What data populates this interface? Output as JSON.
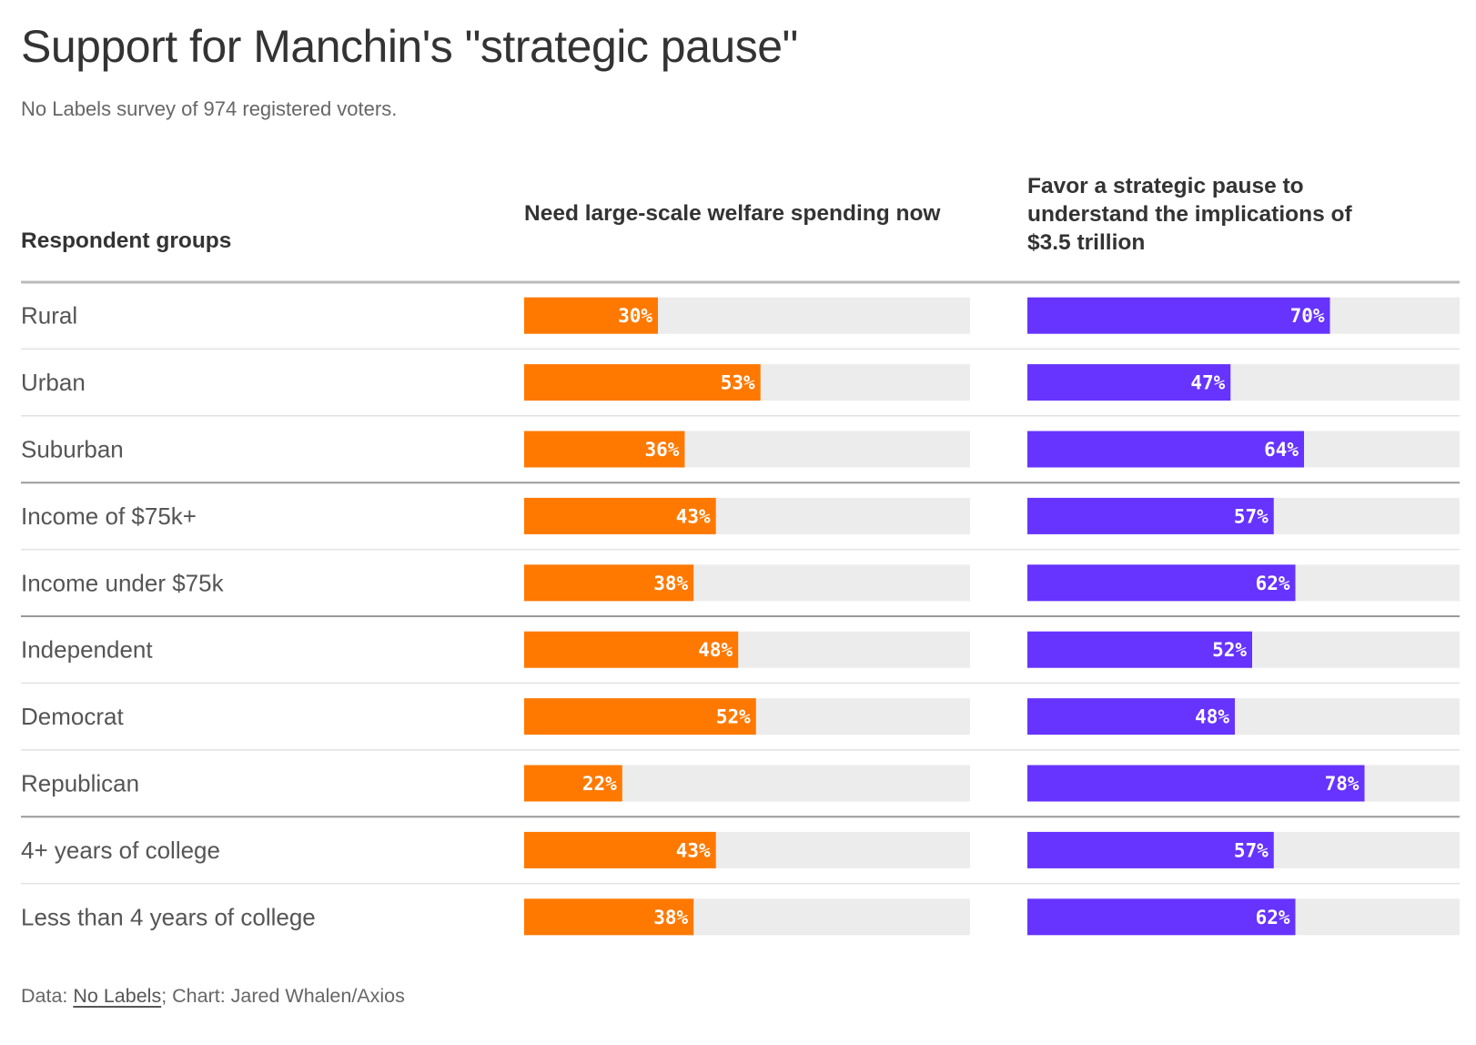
{
  "title": "Support for Manchin's \"strategic pause\"",
  "subtitle": "No Labels survey of 974 registered voters.",
  "source": {
    "prefix": "Data: ",
    "link_text": "No Labels",
    "suffix": "; Chart: Jared Whalen/Axios"
  },
  "colors": {
    "series_a": "#ff7900",
    "series_b": "#6633ff",
    "track": "#ececec",
    "divider_light": "#e2e2e2",
    "divider_group": "#999999",
    "header_rule": "#bbbbbb"
  },
  "chart_data": {
    "type": "bar",
    "orientation": "horizontal",
    "category_header": "Respondent groups",
    "categories": [
      "Rural",
      "Urban",
      "Suburban",
      "Income of $75k+",
      "Income under $75k",
      "Independent",
      "Democrat",
      "Republican",
      "4+ years of college",
      "Less than 4 years of college"
    ],
    "group_breaks_after": [
      "Suburban",
      "Income under $75k",
      "Republican"
    ],
    "series": [
      {
        "name": "Need large-scale welfare spending now",
        "color": "#ff7900",
        "values": [
          30,
          53,
          36,
          43,
          38,
          48,
          52,
          22,
          43,
          38
        ]
      },
      {
        "name": "Favor a strategic pause to understand the implications of $3.5 trillion",
        "color": "#6633ff",
        "values": [
          70,
          47,
          64,
          57,
          62,
          52,
          48,
          78,
          57,
          62
        ]
      }
    ],
    "value_suffix": "%",
    "xlim": [
      0,
      100
    ]
  }
}
